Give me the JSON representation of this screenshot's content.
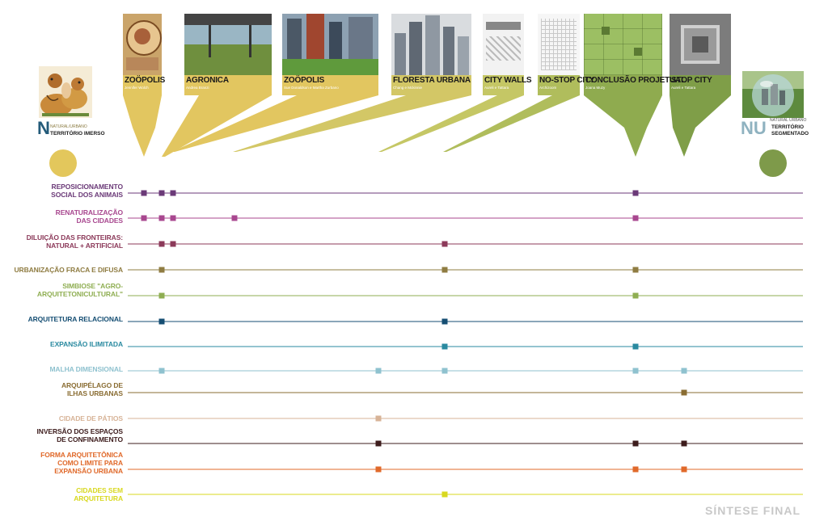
{
  "footer_title": "SÍNTESE FINAL",
  "left_end": {
    "letter": "N",
    "small": "NATURAL/URBANO",
    "territory": "TERRITÓRIO IMERSO",
    "color": "#e3c75c"
  },
  "right_end": {
    "letter": "NU",
    "small_left": "NATURAL",
    "small_right": "URBANO",
    "territory_1": "TERRITÓRIO",
    "territory_2": "SEGMENTADO",
    "color": "#7e9a4a"
  },
  "projects": [
    {
      "title": "ZOÖPOLIS",
      "author": "Jennifer Wolch",
      "color": "#e2c660"
    },
    {
      "title": "AGRONICA",
      "author": "Andrea Branzi",
      "color": "#e2c660"
    },
    {
      "title": "ZOÖPOLIS",
      "author": "Sue Donaldson e Martha Zurbano",
      "color": "#e2c660"
    },
    {
      "title": "FLORESTA URBANA",
      "author": "Chang e Mckinnie",
      "color": "#d3c766"
    },
    {
      "title": "CITY WALLS",
      "author": "Aureli e Tattara",
      "color": "#c5c765"
    },
    {
      "title": "NO-STOP CITY",
      "author": "Archizoom",
      "color": "#b0bd5c"
    },
    {
      "title": "CONCLUSÃO PROJETUAL",
      "author": "Joana Muzy",
      "color": "#8fab4f"
    },
    {
      "title": "STOP CITY",
      "author": "Aureli e Tattara",
      "color": "#7f9e48"
    }
  ],
  "rows": [
    {
      "label": "REPOSICIONAMENTO\nSOCIAL DOS ANIMAIS",
      "color": "#6b3a78"
    },
    {
      "label": "RENATURALIZAÇÃO\nDAS CIDADES",
      "color": "#a8478f"
    },
    {
      "label": "DILUIÇÃO DAS FRONTEIRAS:\nNATURAL + ARTIFICIAL",
      "color": "#8c3a5a"
    },
    {
      "label": "URBANIZAÇÃO FRACA E DIFUSA",
      "color": "#8f7c42"
    },
    {
      "label": "SIMBIOSE \"AGRO-\nARQUITETONICULTURAL\"",
      "color": "#8fae52"
    },
    {
      "label": "ARQUITETURA RELACIONAL",
      "color": "#154e73"
    },
    {
      "label": "EXPANSÃO ILIMITADA",
      "color": "#2a8aa0"
    },
    {
      "label": "MALHA DIMENSIONAL",
      "color": "#8fc2cf"
    },
    {
      "label": "ARQUIPÉLAGO DE\nILHAS URBANAS",
      "color": "#8a6d33"
    },
    {
      "label": "CIDADE DE PÁTIOS",
      "color": "#d7b397"
    },
    {
      "label": "INVERSÃO DOS ESPAÇOS\nDE CONFINAMENTO",
      "color": "#3d1c1c"
    },
    {
      "label": "FORMA ARQUITETÔNICA\nCOMO LIMITE PARA\nEXPANSÃO URBANA",
      "color": "#e0692a"
    },
    {
      "label": "CIDADES SEM\nARQUITETURA",
      "color": "#d8d81f"
    }
  ]
}
